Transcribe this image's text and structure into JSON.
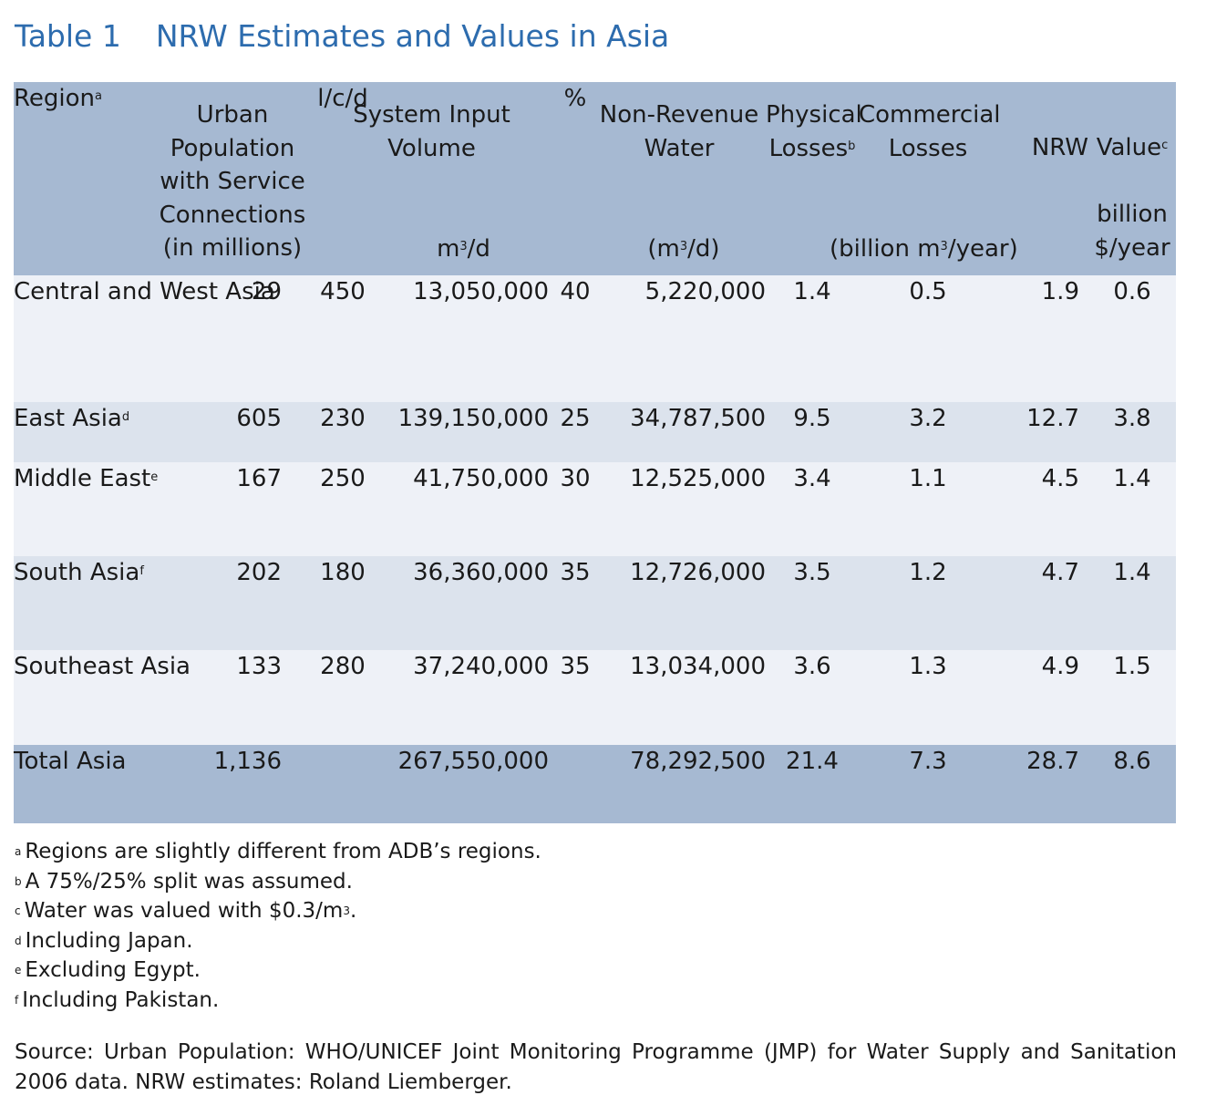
{
  "title": {
    "number": "Table 1",
    "text": "NRW Estimates and Values in Asia"
  },
  "headers": {
    "region": "Region",
    "region_sup": "a",
    "urban_pop_lines": [
      "Urban",
      "Population",
      "with Service",
      "Connections",
      "(in millions)"
    ],
    "system_input_lines": [
      "System Input",
      "Volume"
    ],
    "lcd": "l/c/d",
    "m3d_pre": "m",
    "m3d_sup": "3",
    "m3d_post": "/d",
    "nonrevenue_lines": [
      "Non-Revenue",
      "Water"
    ],
    "pct": "%",
    "nrw_m3d_pre": "(m",
    "nrw_m3d_sup": "3",
    "nrw_m3d_post": "/d)",
    "physical_lines": [
      "Physical",
      "Losses"
    ],
    "physical_sup": "b",
    "commercial_lines": [
      "Commercial",
      "Losses"
    ],
    "nrw": "NRW",
    "value": "Value",
    "value_sup": "c",
    "value_unit_lines": [
      "billion",
      "$/year"
    ],
    "billion_pre": "(billion m",
    "billion_sup": "3",
    "billion_post": "/year)"
  },
  "rows": [
    {
      "region": "Central and West Asia",
      "sup": "",
      "pop": "29",
      "lcd": "450",
      "siv": "13,050,000",
      "pct": "40",
      "nrw_m3d": "5,220,000",
      "physical": "1.4",
      "commercial": "0.5",
      "nrw": "1.9",
      "value": "0.6"
    },
    {
      "region": "East Asia",
      "sup": "d",
      "pop": "605",
      "lcd": "230",
      "siv": "139,150,000",
      "pct": "25",
      "nrw_m3d": "34,787,500",
      "physical": "9.5",
      "commercial": "3.2",
      "nrw": "12.7",
      "value": "3.8"
    },
    {
      "region": "Middle East",
      "sup": "e",
      "pop": "167",
      "lcd": "250",
      "siv": "41,750,000",
      "pct": "30",
      "nrw_m3d": "12,525,000",
      "physical": "3.4",
      "commercial": "1.1",
      "nrw": "4.5",
      "value": "1.4"
    },
    {
      "region": "South Asia",
      "sup": "f",
      "pop": "202",
      "lcd": "180",
      "siv": "36,360,000",
      "pct": "35",
      "nrw_m3d": "12,726,000",
      "physical": "3.5",
      "commercial": "1.2",
      "nrw": "4.7",
      "value": "1.4"
    },
    {
      "region": "Southeast Asia",
      "sup": "",
      "pop": "133",
      "lcd": "280",
      "siv": "37,240,000",
      "pct": "35",
      "nrw_m3d": "13,034,000",
      "physical": "3.6",
      "commercial": "1.3",
      "nrw": "4.9",
      "value": "1.5"
    }
  ],
  "total": {
    "region": "Total Asia",
    "pop": "1,136",
    "siv": "267,550,000",
    "nrw_m3d": "78,292,500",
    "physical": "21.4",
    "commercial": "7.3",
    "nrw": "28.7",
    "value": "8.6"
  },
  "notes": [
    {
      "sup": "a",
      "text": "Regions are slightly different from ADB’s regions."
    },
    {
      "sup": "b",
      "text": "A 75%/25% split was assumed."
    },
    {
      "sup": "c",
      "text": "Water was valued with $0.3/m",
      "tail_sup": "3",
      "tail": "."
    },
    {
      "sup": "d",
      "text": "Including Japan."
    },
    {
      "sup": "e",
      "text": "Excluding Egypt."
    },
    {
      "sup": "f",
      "text": "Including Pakistan."
    }
  ],
  "source": "Source: Urban Population: WHO/UNICEF Joint Monitoring Programme (JMP) for Water Supply and Sanitation 2006 data. NRW estimates: Roland Liemberger."
}
